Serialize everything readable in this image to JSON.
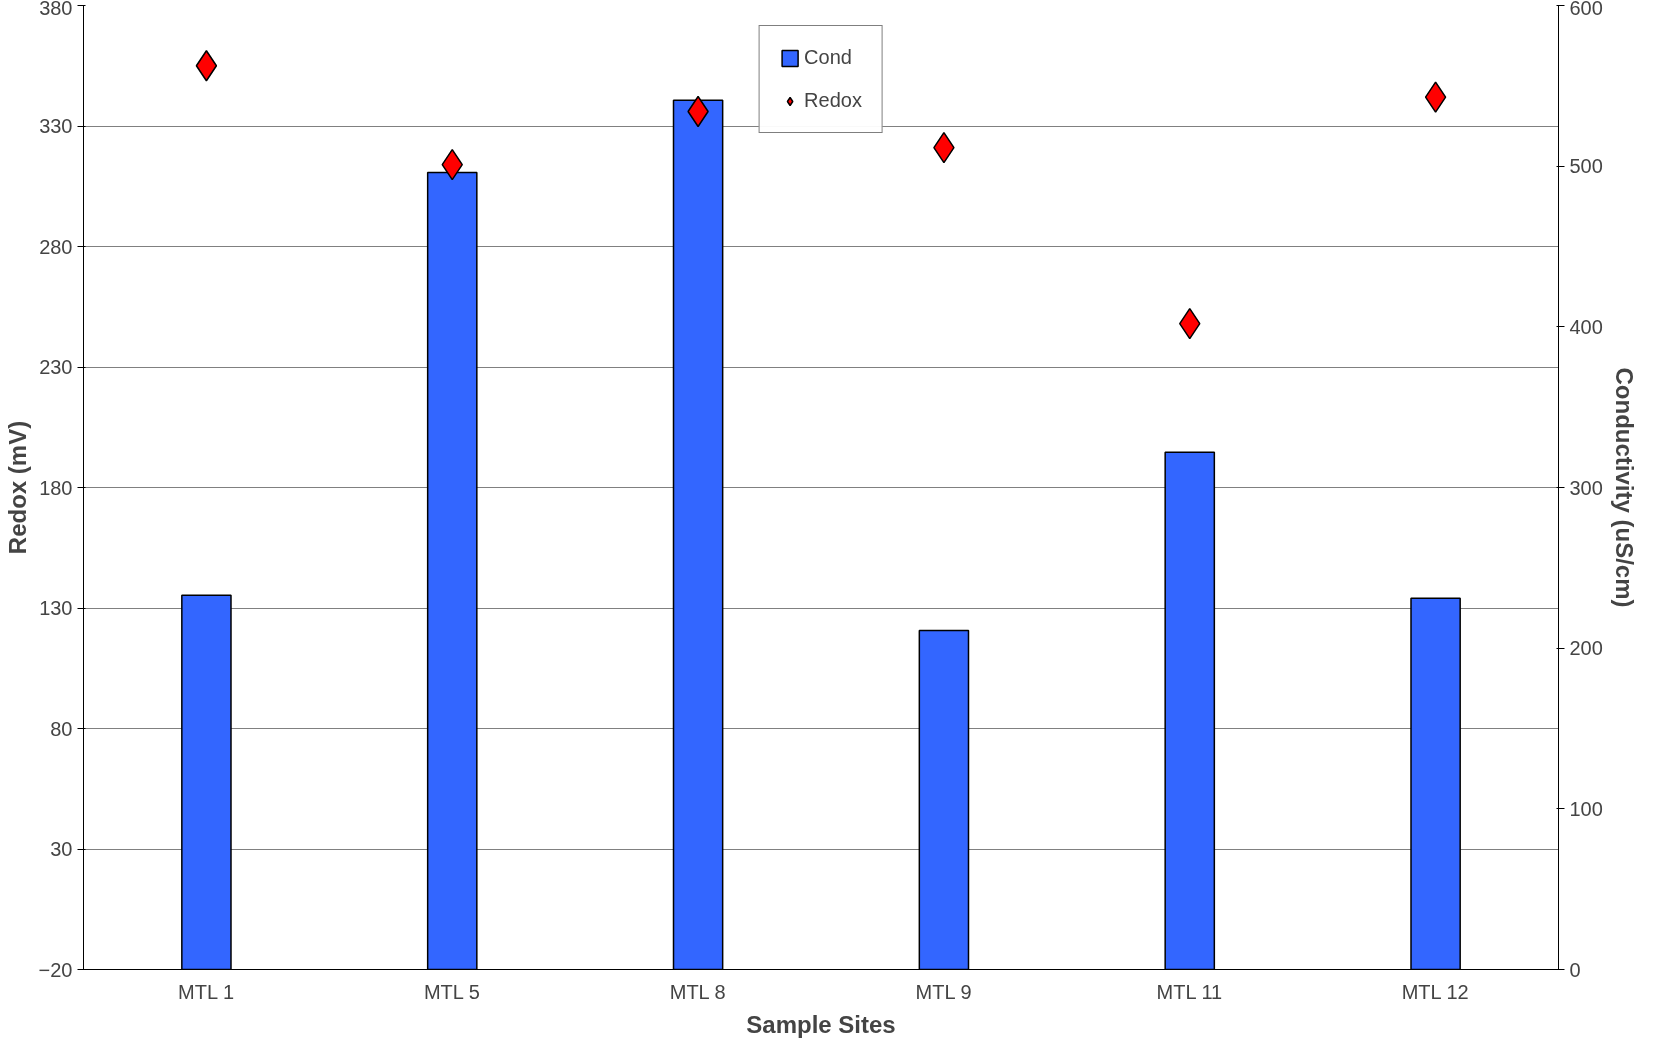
{
  "chart_data": {
    "type": "bar",
    "xlabel": "Sample Sites",
    "ylabel": "Redox (mV)",
    "y2label": "Conductivity (uS/cm)",
    "categories": [
      "MTL 1",
      "MTL 5",
      "MTL 8",
      "MTL 9",
      "MTL 11",
      "MTL 12"
    ],
    "series": [
      {
        "name": "Cond",
        "axis": "y2",
        "color": "#3366ff",
        "values": [
          233,
          496,
          541,
          211,
          322,
          231
        ]
      },
      {
        "name": "Redox",
        "type": "scatter",
        "marker": "diamond",
        "color": "#ff0000",
        "values": [
          355,
          314,
          336,
          321,
          248,
          342
        ]
      }
    ],
    "ylim": [
      -20,
      380
    ],
    "yticks": [
      -20,
      30,
      80,
      130,
      180,
      230,
      280,
      330,
      380
    ],
    "y2lim": [
      0,
      600
    ],
    "y2ticks": [
      0,
      100,
      200,
      300,
      400,
      500,
      600
    ],
    "grid": "y",
    "legend": "top"
  }
}
